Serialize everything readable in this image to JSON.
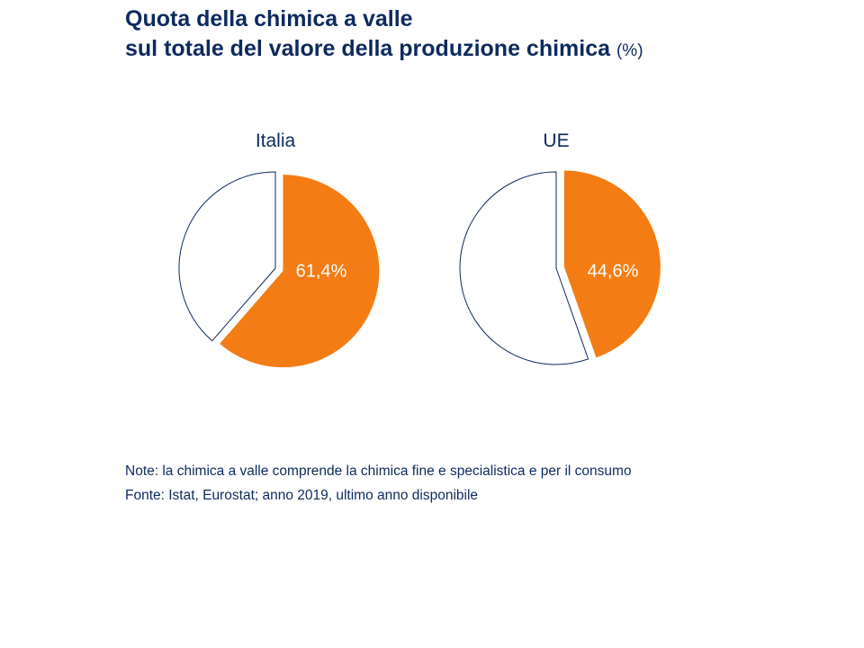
{
  "title": {
    "line1": "Quota della chimica a valle",
    "line2": "sul totale del valore della produzione chimica",
    "unit": "(%)"
  },
  "chart_data": [
    {
      "type": "pie",
      "title": "Italia",
      "values": [
        61.4,
        38.6
      ],
      "labels": [
        "61,4%",
        ""
      ],
      "colors": [
        "#f47c14",
        "#ffffff"
      ],
      "outline": "#0d2a5e"
    },
    {
      "type": "pie",
      "title": "UE",
      "values": [
        44.6,
        55.4
      ],
      "labels": [
        "44,6%",
        ""
      ],
      "colors": [
        "#f47c14",
        "#ffffff"
      ],
      "outline": "#0d2a5e"
    }
  ],
  "notes": {
    "note": "Note: la chimica a valle comprende la chimica fine e specialistica e per il consumo",
    "source": "Fonte: Istat, Eurostat; anno 2019, ultimo anno disponibile"
  }
}
